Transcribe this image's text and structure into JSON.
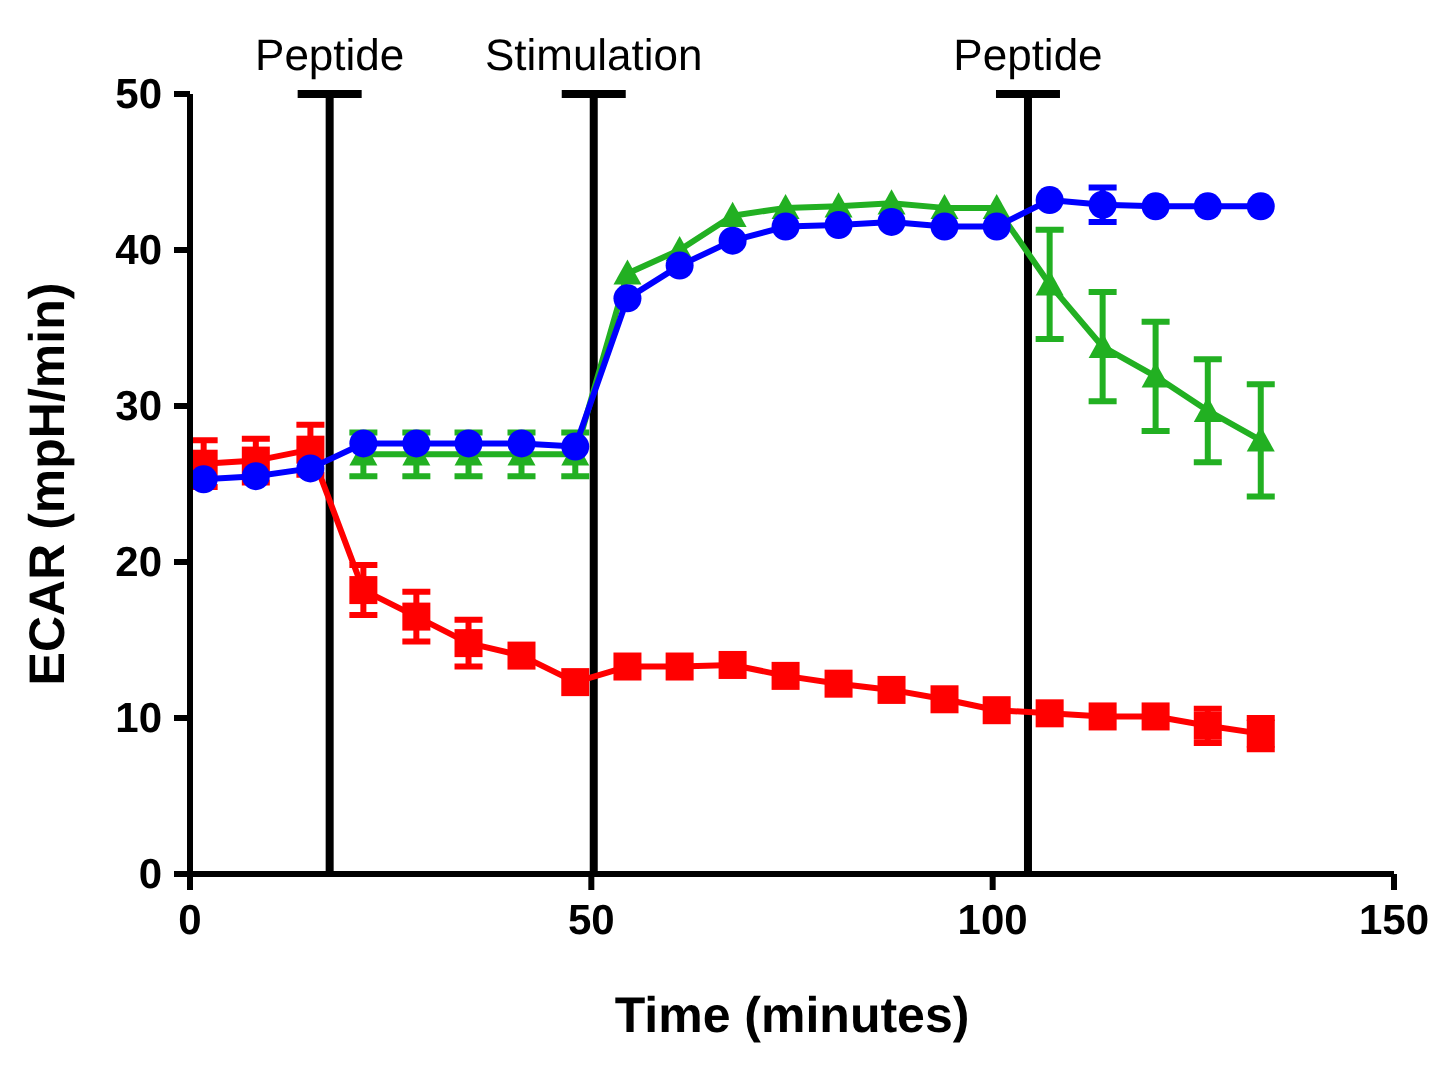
{
  "chart_data": {
    "type": "line",
    "xlabel": "Time (minutes)",
    "ylabel": "ECAR (mpH/min)",
    "x": [
      1.7,
      8.2,
      15,
      21.6,
      28.2,
      34.7,
      41.3,
      48,
      54.5,
      61,
      67.6,
      74.2,
      80.8,
      87.4,
      94,
      100.5,
      107.1,
      113.7,
      120.3,
      126.8,
      133.4
    ],
    "xlim": [
      0,
      150
    ],
    "xticks": [
      0,
      50,
      100,
      150
    ],
    "ylim": [
      0,
      50
    ],
    "yticks": [
      0,
      10,
      20,
      30,
      40,
      50
    ],
    "grid": false,
    "series": [
      {
        "color": "#ff0000",
        "marker": "square",
        "values": [
          26.3,
          26.5,
          27.2,
          18.2,
          16.5,
          14.8,
          14.0,
          12.3,
          13.3,
          13.3,
          13.4,
          12.7,
          12.2,
          11.8,
          11.2,
          10.5,
          10.3,
          10.1,
          10.1,
          9.5,
          9.0
        ],
        "errors": [
          1.5,
          1.4,
          1.6,
          1.6,
          1.6,
          1.5,
          null,
          null,
          null,
          null,
          null,
          null,
          null,
          null,
          null,
          null,
          null,
          null,
          null,
          1.1,
          1.0
        ]
      },
      {
        "color": "#22b022",
        "marker": "triangle",
        "values": [
          null,
          null,
          null,
          26.9,
          26.9,
          26.9,
          26.9,
          26.9,
          38.5,
          40.0,
          42.2,
          42.7,
          42.8,
          43.0,
          42.7,
          42.7,
          37.8,
          33.8,
          31.9,
          29.7,
          27.8
        ],
        "errors": [
          null,
          null,
          null,
          1.4,
          1.4,
          1.4,
          1.4,
          1.4,
          null,
          null,
          null,
          null,
          null,
          null,
          null,
          null,
          3.5,
          3.5,
          3.5,
          3.3,
          3.6
        ]
      },
      {
        "color": "#0000ff",
        "marker": "circle",
        "values": [
          25.3,
          25.5,
          26.0,
          27.6,
          27.6,
          27.6,
          27.6,
          27.4,
          36.9,
          39.0,
          40.6,
          41.5,
          41.6,
          41.8,
          41.5,
          41.5,
          43.2,
          42.9,
          42.8,
          42.8,
          42.8
        ],
        "errors": [
          null,
          null,
          null,
          null,
          null,
          null,
          null,
          null,
          null,
          null,
          null,
          null,
          null,
          null,
          null,
          null,
          null,
          1.1,
          null,
          null,
          null
        ]
      }
    ],
    "ref_lines": [
      {
        "axis": "x",
        "value": 17.4,
        "label": "Peptide",
        "color": "#000000"
      },
      {
        "axis": "x",
        "value": 50.3,
        "label": "Stimulation",
        "color": "#000000"
      },
      {
        "axis": "x",
        "value": 104.4,
        "label": "Peptide",
        "color": "#000000"
      }
    ]
  }
}
